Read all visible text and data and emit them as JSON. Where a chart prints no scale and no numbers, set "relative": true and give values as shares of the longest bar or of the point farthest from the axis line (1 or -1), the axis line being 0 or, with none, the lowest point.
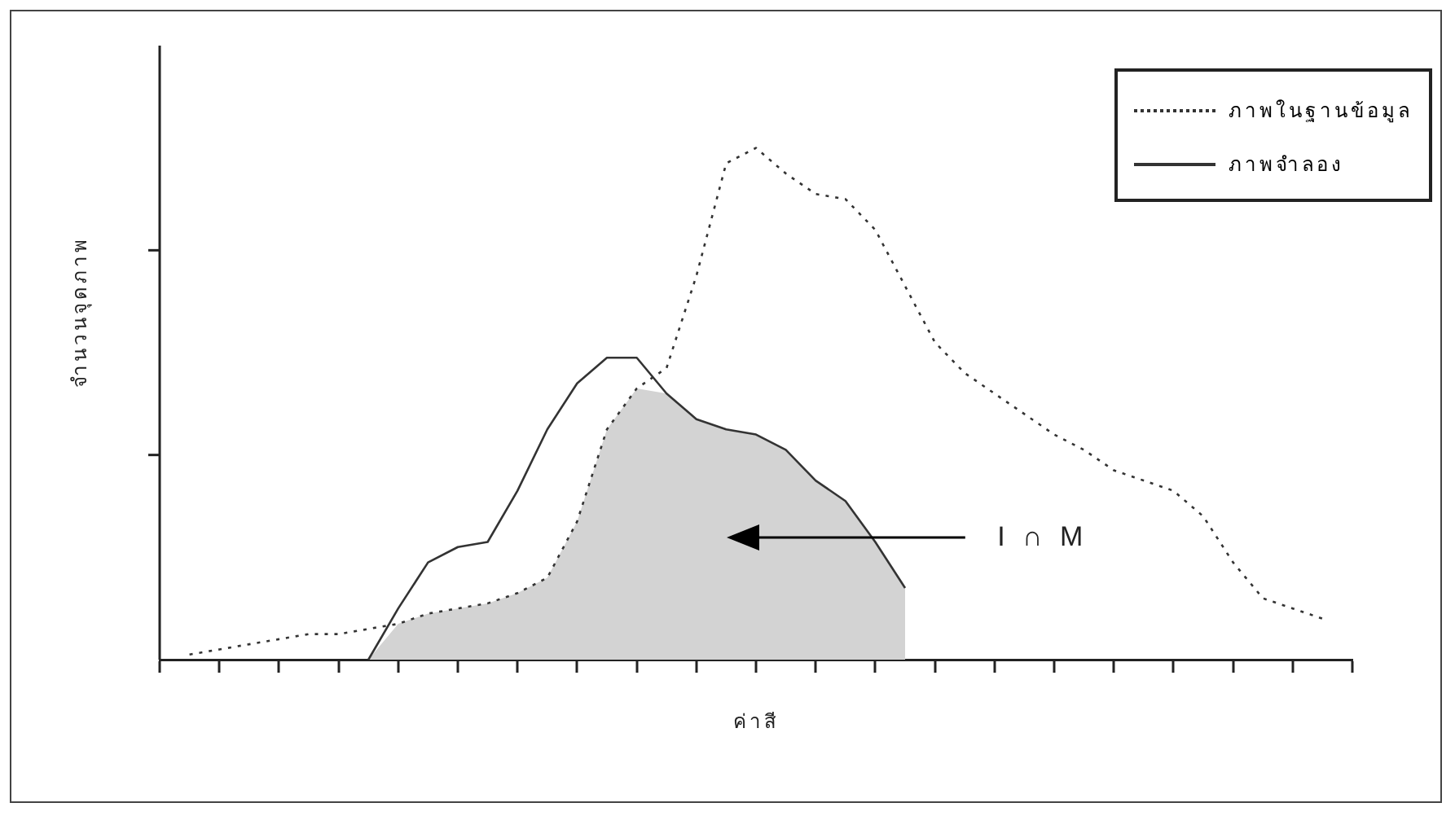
{
  "chart_data": {
    "type": "line",
    "relative": true,
    "xlabel": "ค่าสี",
    "ylabel": "จำนวนจุดภาพ",
    "legend": "top right",
    "marker": "none",
    "categories": [
      null,
      null,
      null,
      null,
      null,
      null,
      null,
      null,
      null,
      null,
      null,
      null,
      null,
      null,
      null,
      null,
      null,
      null,
      null,
      null,
      null,
      null,
      null,
      null,
      null,
      null,
      null,
      null,
      null,
      null,
      null,
      null,
      null,
      null,
      null,
      null,
      null,
      null,
      null,
      null,
      null
    ],
    "series": [
      {
        "type": "area",
        "color": "#d3d3d3",
        "values": [
          null,
          null,
          null,
          null,
          null,
          null,
          null,
          0,
          0.07,
          0.09,
          0.1,
          0.11,
          0.13,
          0.16,
          0.27,
          0.45,
          0.53,
          0.52,
          0.47,
          0.45,
          0.44,
          0.41,
          0.35,
          0.31,
          0.23,
          0.14,
          null,
          null,
          null,
          null,
          null,
          null,
          null,
          null,
          null,
          null,
          null,
          null,
          null,
          null,
          null
        ]
      },
      {
        "type": "line",
        "name": "ภาพในฐานข้อมูล",
        "color": "#333333",
        "line_style": "dotted",
        "values": [
          null,
          0.01,
          0.02,
          0.03,
          0.04,
          0.05,
          0.05,
          0.06,
          0.07,
          0.09,
          0.1,
          0.11,
          0.13,
          0.16,
          0.27,
          0.45,
          0.53,
          0.57,
          0.75,
          0.97,
          1,
          0.95,
          0.91,
          0.9,
          0.84,
          0.73,
          0.62,
          0.56,
          0.52,
          0.48,
          0.44,
          0.41,
          0.37,
          0.35,
          0.33,
          0.28,
          0.19,
          0.12,
          0.1,
          0.08,
          null
        ]
      },
      {
        "type": "line",
        "name": "ภาพจำลอง",
        "color": "#333333",
        "line_style": "solid",
        "values": [
          null,
          null,
          null,
          null,
          null,
          null,
          null,
          0,
          0.1,
          0.19,
          0.22,
          0.23,
          0.33,
          0.45,
          0.54,
          0.59,
          0.59,
          0.52,
          0.47,
          0.45,
          0.44,
          0.41,
          0.35,
          0.31,
          0.23,
          0.14,
          null,
          null,
          null,
          null,
          null,
          null,
          null,
          null,
          null,
          null,
          null,
          null,
          null,
          null,
          null
        ]
      }
    ],
    "annotations": [
      "I ∩ M"
    ]
  }
}
